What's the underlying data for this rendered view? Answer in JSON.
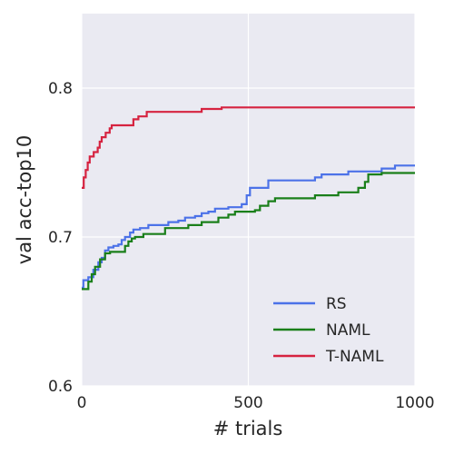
{
  "chart_data": {
    "type": "line",
    "xlabel": "# trials",
    "ylabel": "val acc-top10",
    "xlim": [
      0,
      1000
    ],
    "ylim": [
      0.6,
      0.85
    ],
    "xticks": [
      0,
      500,
      1000
    ],
    "xtick_labels": [
      "0",
      "500",
      "1000"
    ],
    "yticks": [
      0.6,
      0.7,
      0.8
    ],
    "ytick_labels": [
      "0.6",
      "0.7",
      "0.8"
    ],
    "grid": true,
    "legend_position": "lower-right",
    "background": "#eaeaf2",
    "series": [
      {
        "name": "RS",
        "color": "#4c72e8",
        "step": true,
        "points": [
          [
            0,
            0.666
          ],
          [
            5,
            0.671
          ],
          [
            20,
            0.673
          ],
          [
            35,
            0.678
          ],
          [
            50,
            0.683
          ],
          [
            60,
            0.686
          ],
          [
            70,
            0.691
          ],
          [
            80,
            0.693
          ],
          [
            95,
            0.694
          ],
          [
            110,
            0.695
          ],
          [
            120,
            0.698
          ],
          [
            130,
            0.7
          ],
          [
            145,
            0.703
          ],
          [
            155,
            0.705
          ],
          [
            175,
            0.706
          ],
          [
            200,
            0.708
          ],
          [
            260,
            0.71
          ],
          [
            290,
            0.711
          ],
          [
            310,
            0.713
          ],
          [
            340,
            0.714
          ],
          [
            360,
            0.716
          ],
          [
            380,
            0.717
          ],
          [
            400,
            0.719
          ],
          [
            440,
            0.72
          ],
          [
            480,
            0.722
          ],
          [
            495,
            0.728
          ],
          [
            505,
            0.733
          ],
          [
            560,
            0.738
          ],
          [
            700,
            0.74
          ],
          [
            720,
            0.742
          ],
          [
            800,
            0.744
          ],
          [
            900,
            0.746
          ],
          [
            940,
            0.748
          ],
          [
            1000,
            0.748
          ]
        ]
      },
      {
        "name": "NAML",
        "color": "#1a7f1a",
        "step": true,
        "points": [
          [
            0,
            0.665
          ],
          [
            20,
            0.67
          ],
          [
            30,
            0.675
          ],
          [
            40,
            0.68
          ],
          [
            55,
            0.685
          ],
          [
            70,
            0.689
          ],
          [
            85,
            0.69
          ],
          [
            130,
            0.694
          ],
          [
            140,
            0.697
          ],
          [
            150,
            0.699
          ],
          [
            160,
            0.7
          ],
          [
            185,
            0.702
          ],
          [
            250,
            0.706
          ],
          [
            320,
            0.708
          ],
          [
            360,
            0.71
          ],
          [
            410,
            0.713
          ],
          [
            440,
            0.715
          ],
          [
            460,
            0.717
          ],
          [
            520,
            0.718
          ],
          [
            535,
            0.721
          ],
          [
            560,
            0.724
          ],
          [
            580,
            0.726
          ],
          [
            700,
            0.728
          ],
          [
            770,
            0.73
          ],
          [
            830,
            0.733
          ],
          [
            850,
            0.737
          ],
          [
            860,
            0.742
          ],
          [
            900,
            0.743
          ],
          [
            1000,
            0.743
          ]
        ]
      },
      {
        "name": "T-NAML",
        "color": "#d62340",
        "step": true,
        "points": [
          [
            0,
            0.733
          ],
          [
            6,
            0.74
          ],
          [
            12,
            0.745
          ],
          [
            18,
            0.75
          ],
          [
            24,
            0.754
          ],
          [
            36,
            0.757
          ],
          [
            48,
            0.76
          ],
          [
            54,
            0.764
          ],
          [
            60,
            0.767
          ],
          [
            72,
            0.77
          ],
          [
            84,
            0.773
          ],
          [
            90,
            0.775
          ],
          [
            155,
            0.779
          ],
          [
            170,
            0.781
          ],
          [
            195,
            0.784
          ],
          [
            360,
            0.786
          ],
          [
            420,
            0.787
          ],
          [
            1000,
            0.787
          ]
        ]
      }
    ]
  }
}
